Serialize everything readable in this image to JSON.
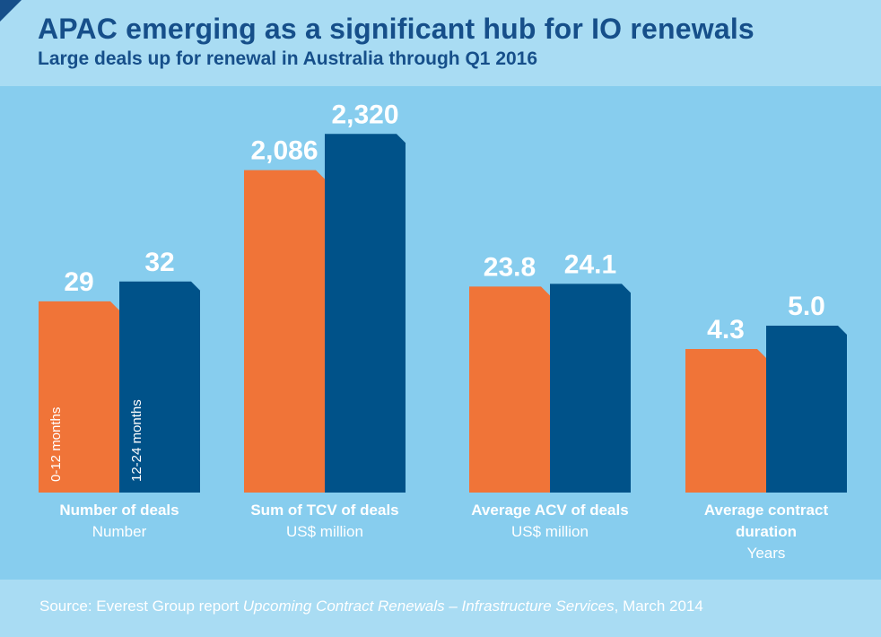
{
  "header": {
    "title": "APAC emerging as a significant hub for IO renewals",
    "subtitle": "Large deals up for renewal in Australia through Q1 2016"
  },
  "footer": {
    "source_prefix": "Source: Everest Group report ",
    "source_title": "Upcoming Contract Renewals – Infrastructure Services",
    "source_suffix": ", March 2014"
  },
  "colors": {
    "series_a": "#f07438",
    "series_b": "#005289",
    "background": "#87cdee",
    "band": "#a9dcf3",
    "title": "#164f8a"
  },
  "chart_data": {
    "type": "bar",
    "title": "APAC emerging as a significant hub for IO renewals",
    "subtitle": "Large deals up for renewal in Australia through Q1 2016",
    "series": [
      {
        "name": "0-12 months"
      },
      {
        "name": "12-24 months"
      }
    ],
    "groups": [
      {
        "label_lines": [
          "Number of deals"
        ],
        "unit": "Number",
        "values": [
          29,
          32
        ],
        "value_labels": [
          "29",
          "32"
        ]
      },
      {
        "label_lines": [
          "Sum of TCV of deals"
        ],
        "unit": "US$ million",
        "values": [
          2086,
          2320
        ],
        "value_labels": [
          "2,086",
          "2,320"
        ]
      },
      {
        "label_lines": [
          "Average ACV of deals"
        ],
        "unit": "US$ million",
        "values": [
          23.8,
          24.1
        ],
        "value_labels": [
          "23.8",
          "24.1"
        ]
      },
      {
        "label_lines": [
          "Average contract",
          "duration"
        ],
        "unit": "Years",
        "values": [
          4.3,
          5.0
        ],
        "value_labels": [
          "4.3",
          "5.0"
        ]
      }
    ],
    "note": "Each group is scaled independently; no shared y-axis is shown."
  }
}
